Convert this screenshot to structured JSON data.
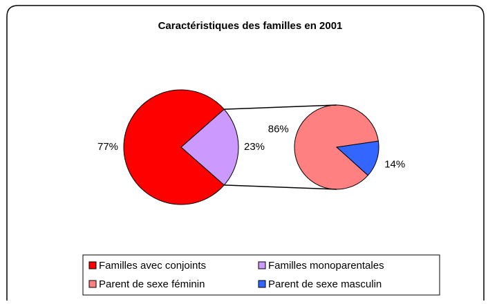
{
  "chart_data": {
    "type": "pie_of_pie",
    "title": "Caractéristiques des familles en 2001",
    "pies": [
      {
        "categories": [
          "Familles avec conjoints",
          "Familles monoparentales"
        ],
        "values": [
          77,
          23
        ],
        "value_labels": [
          "77%",
          "23%"
        ],
        "colors": [
          "#ff0000",
          "#cc99ff"
        ]
      },
      {
        "categories": [
          "Parent de sexe féminin",
          "Parent de sexe masculin"
        ],
        "values": [
          86,
          14
        ],
        "value_labels": [
          "86%",
          "14%"
        ],
        "colors": [
          "#ff8080",
          "#3366ff"
        ]
      }
    ],
    "legend": "bottom"
  }
}
